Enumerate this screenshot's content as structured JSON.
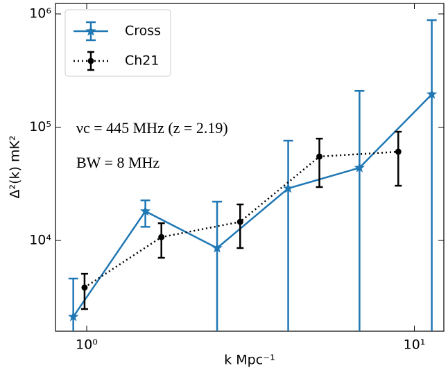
{
  "chart_data": {
    "type": "errorbar",
    "xlabel": "k Mpc⁻¹",
    "ylabel": "Δ²(k) mK²",
    "annotations": [
      "νc = 445 MHz (z = 2.19)",
      "BW = 8 MHz"
    ],
    "log_x": true,
    "log_y": true,
    "legend": "upper left",
    "xlim": [
      0.803,
      12.3
    ],
    "ylim": [
      1581,
      1236000
    ],
    "xticks": [
      {
        "value": 1,
        "label": "10⁰"
      },
      {
        "value": 10,
        "label": "10¹"
      }
    ],
    "yticks": [
      {
        "value": 10000,
        "label": "10⁴"
      },
      {
        "value": 100000,
        "label": "10⁵"
      },
      {
        "value": 1000000,
        "label": "10⁶"
      }
    ],
    "series": [
      {
        "name": "Cross",
        "color": "#1f77b4",
        "marker": "star",
        "line": "solid",
        "x": [
          0.91,
          1.51,
          2.5,
          4.12,
          6.8,
          11.3
        ],
        "values": [
          2120,
          18100,
          8570,
          28800,
          43800,
          195000
        ],
        "upper": [
          4610,
          22600,
          22000,
          76000,
          209000,
          881000
        ],
        "lower": [
          0,
          13200,
          0,
          0,
          0,
          0
        ]
      },
      {
        "name": "Ch21",
        "color": "#000000",
        "marker": "circle",
        "line": "dotted",
        "x": [
          0.985,
          1.69,
          2.94,
          5.13,
          8.93
        ],
        "values": [
          3840,
          10700,
          14600,
          55000,
          60700
        ],
        "upper": [
          5080,
          14200,
          20800,
          79200,
          91200
        ],
        "lower": [
          2480,
          7030,
          8570,
          29600,
          30400
        ]
      }
    ]
  }
}
